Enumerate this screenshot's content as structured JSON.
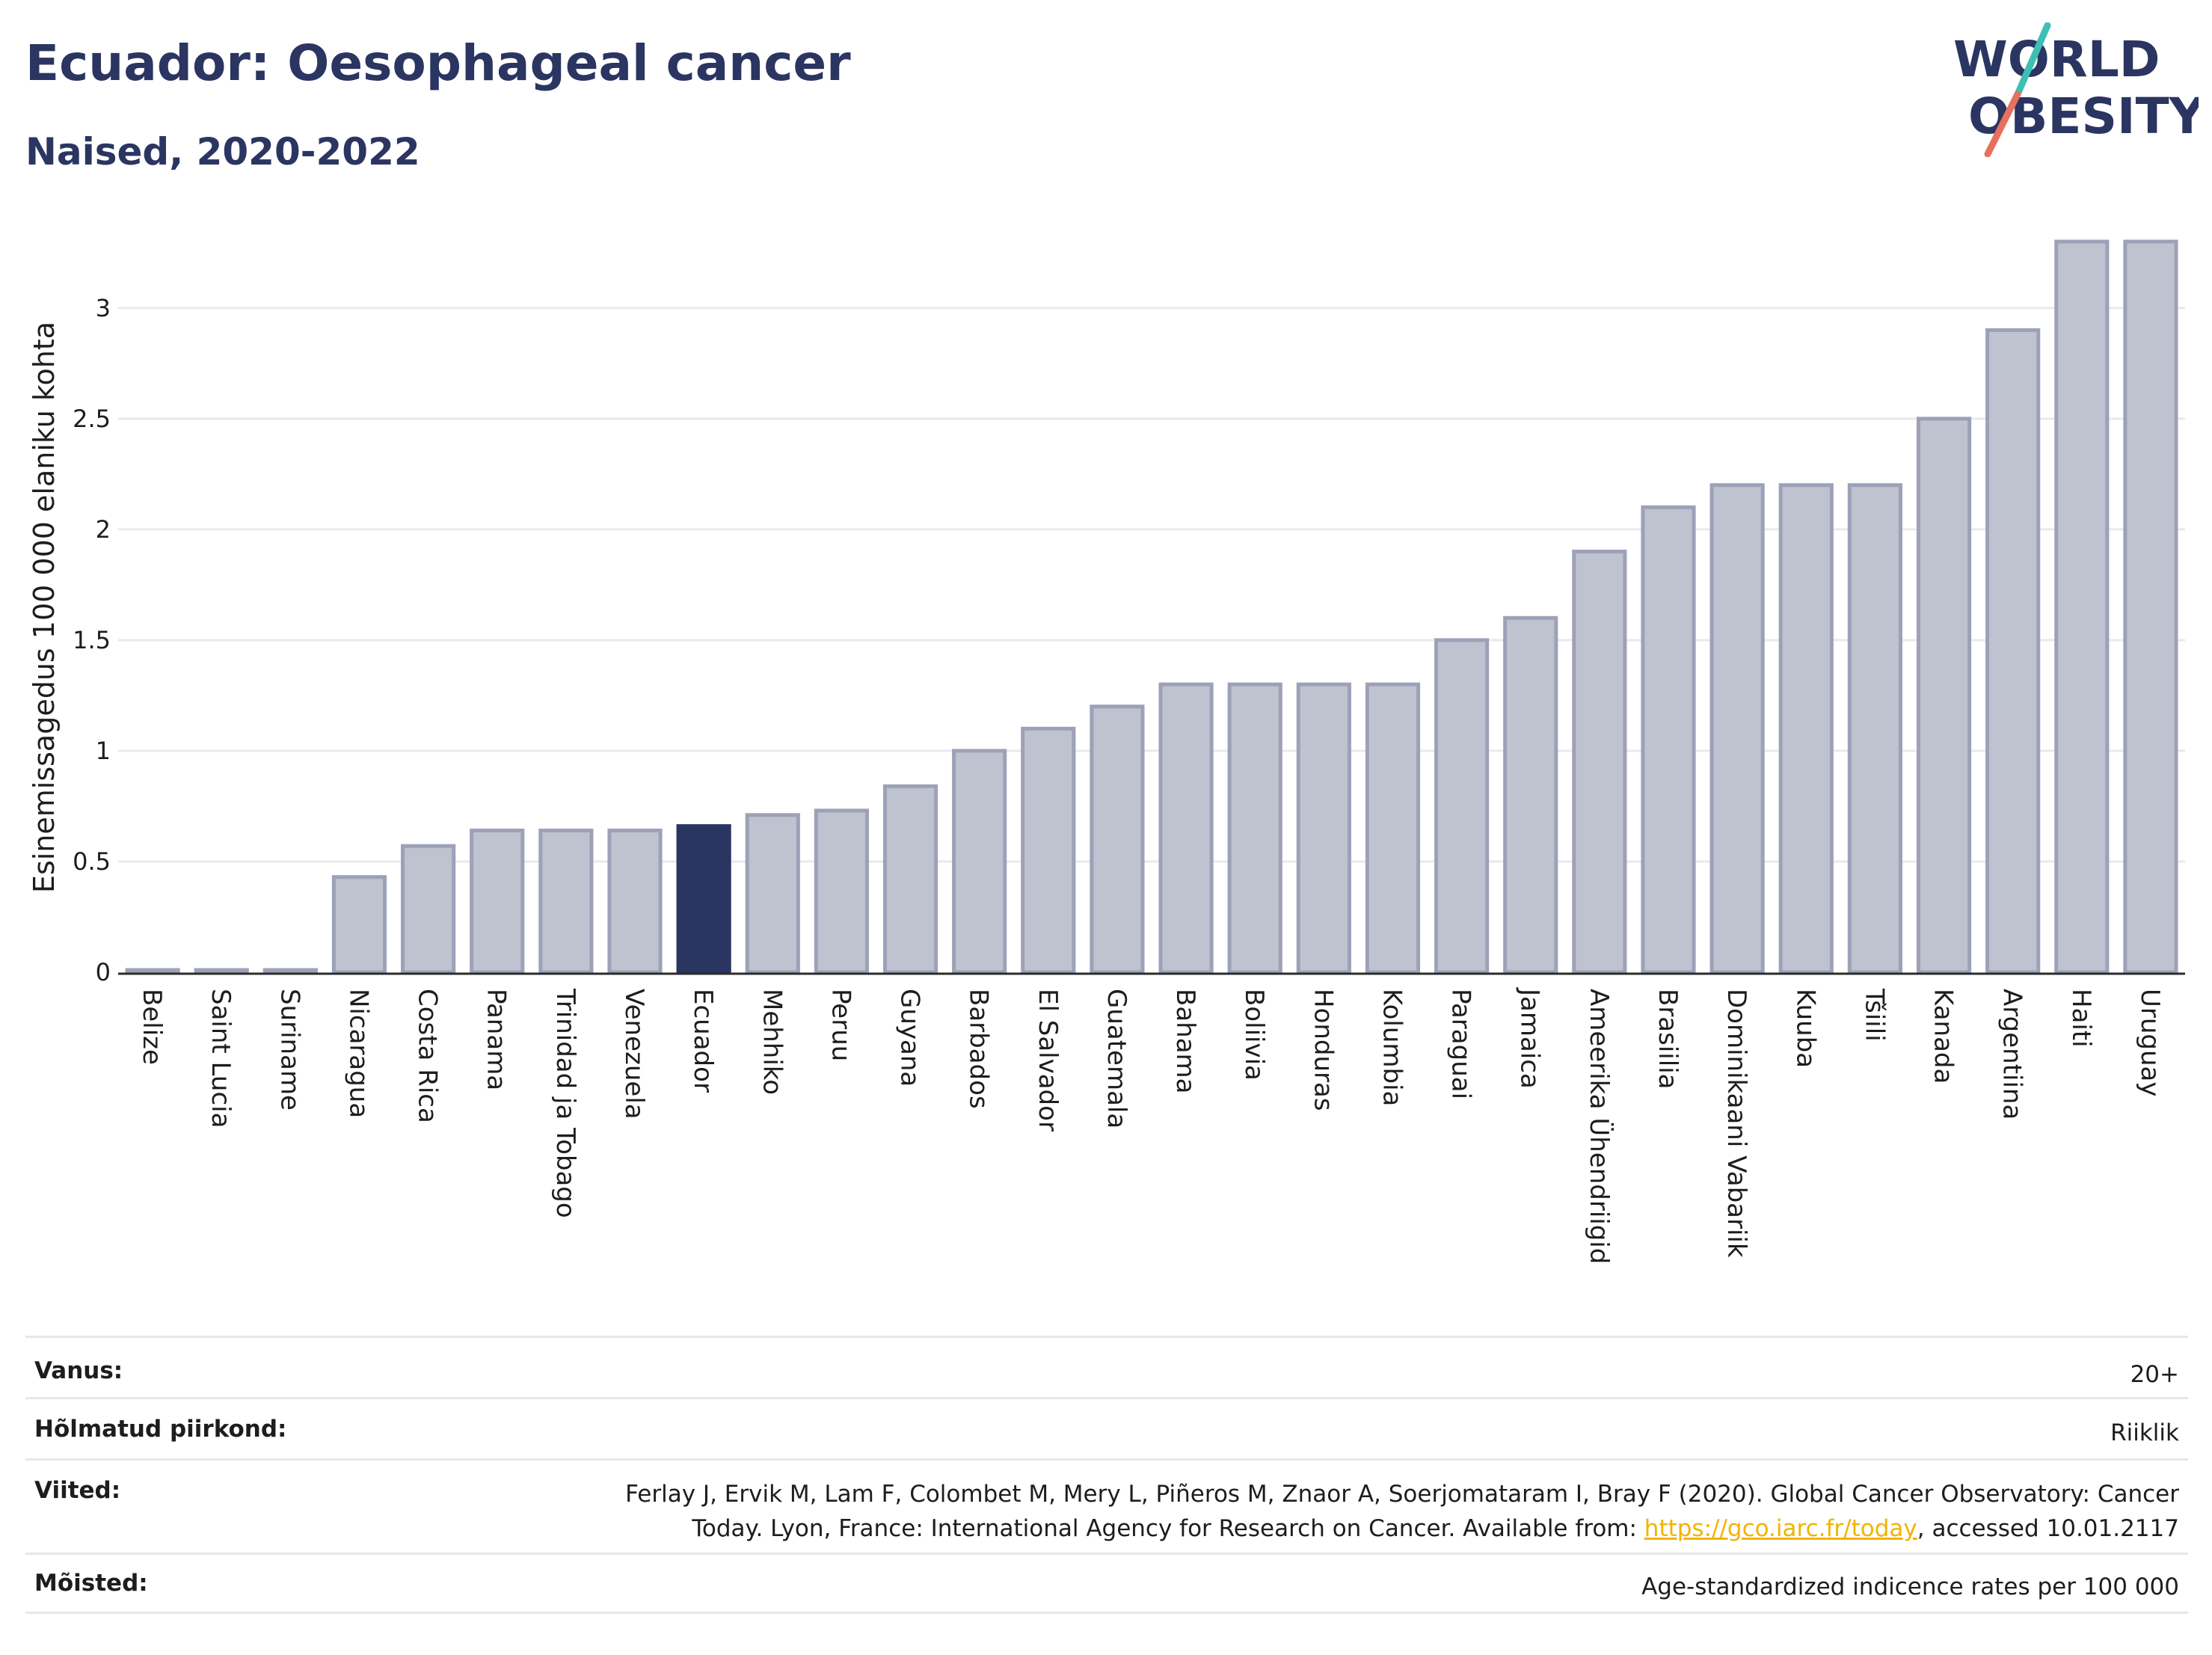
{
  "header": {
    "title": "Ecuador: Oesophageal cancer",
    "subtitle": "Naised, 2020-2022",
    "logo_line1": "WORLD",
    "logo_line2": "OBESITY"
  },
  "chart_data": {
    "type": "bar",
    "ylabel": "Esinemissagedus 100 000 elaniku kohta",
    "ylim": [
      0,
      3.3
    ],
    "yticks": [
      0,
      0.5,
      1,
      1.5,
      2,
      2.5,
      3
    ],
    "ytick_labels": [
      "0",
      "0.5",
      "1",
      "1.5",
      "2",
      "2.5",
      "3"
    ],
    "grid": true,
    "highlight": "Ecuador",
    "colors": {
      "bar": "#bfc2cf",
      "bar_edge": "#9da1b8",
      "highlight": "#2b3561"
    },
    "categories": [
      "Belize",
      "Saint Lucia",
      "Suriname",
      "Nicaragua",
      "Costa Rica",
      "Panama",
      "Trinidad ja Tobago",
      "Venezuela",
      "Ecuador",
      "Mehhiko",
      "Peruu",
      "Guyana",
      "Barbados",
      "El Salvador",
      "Guatemala",
      "Bahama",
      "Boliivia",
      "Honduras",
      "Kolumbia",
      "Paraguai",
      "Jamaica",
      "Ameerika Ühendriigid",
      "Brasiilia",
      "Dominikaani Vabariik",
      "Kuuba",
      "Tšiili",
      "Kanada",
      "Argentiina",
      "Haiti",
      "Uruguay"
    ],
    "values": [
      0.01,
      0.01,
      0.01,
      0.43,
      0.57,
      0.64,
      0.64,
      0.64,
      0.66,
      0.71,
      0.73,
      0.84,
      1.0,
      1.1,
      1.2,
      1.3,
      1.3,
      1.3,
      1.3,
      1.5,
      1.6,
      1.9,
      2.1,
      2.2,
      2.2,
      2.2,
      2.5,
      2.9,
      3.3,
      3.3
    ]
  },
  "footer": {
    "age_label": "Vanus:",
    "age_value": "20+",
    "region_label": "Hõlmatud piirkond:",
    "region_value": "Riiklik",
    "refs_label": "Viited:",
    "refs_line1": "Ferlay J, Ervik M, Lam F, Colombet M, Mery L, Piñeros M, Znaor A, Soerjomataram I, Bray F (2020). Global Cancer Observatory: Cancer",
    "refs_line2_pre": "Today. Lyon, France: International Agency for Research on Cancer. Available from: ",
    "refs_link": "https://gco.iarc.fr/today",
    "refs_line2_post": ", accessed 10.01.2117",
    "def_label": "Mõisted:",
    "def_value": "Age-standardized indicence rates per 100 000"
  }
}
